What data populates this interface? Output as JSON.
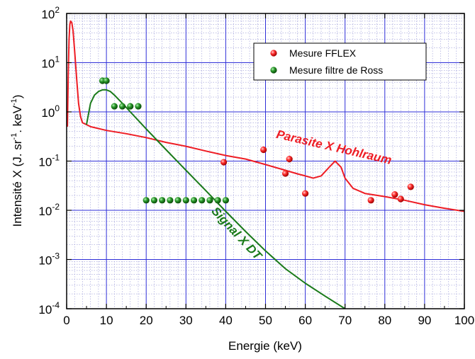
{
  "chart_data": {
    "type": "scatter",
    "xlabel": "Energie (keV)",
    "ylabel": {
      "main": "Intensité X (J. sr",
      "exp1": "-1",
      "mid": ". keV",
      "exp2": "-1",
      "end": ")"
    },
    "x_range": [
      0,
      100
    ],
    "y_range": [
      0.0001,
      100
    ],
    "y_scale": "log",
    "x_ticks": [
      "0",
      "10",
      "20",
      "30",
      "40",
      "50",
      "60",
      "70",
      "80",
      "90",
      "100"
    ],
    "y_ticks": [
      {
        "base": "10",
        "exp": "-4",
        "value": 0.0001
      },
      {
        "base": "10",
        "exp": "-3",
        "value": 0.001
      },
      {
        "base": "10",
        "exp": "-2",
        "value": 0.01
      },
      {
        "base": "10",
        "exp": "-1",
        "value": 0.1
      },
      {
        "base": "10",
        "exp": "0",
        "value": 1
      },
      {
        "base": "10",
        "exp": "1",
        "value": 10
      },
      {
        "base": "10",
        "exp": "2",
        "value": 100
      }
    ],
    "grid": true,
    "legend_position": "top-right",
    "colors": {
      "red": "#ee1c24",
      "green": "#1a7a1a",
      "grid": "#2f2fd8",
      "minor_grid": "#9a9ad8"
    },
    "series": [
      {
        "name": "Mesure FFLEX",
        "kind": "markers",
        "color": "#ee1c24",
        "points": [
          [
            39.5,
            0.095
          ],
          [
            49.5,
            0.17
          ],
          [
            55,
            0.056
          ],
          [
            56,
            0.11
          ],
          [
            60,
            0.022
          ],
          [
            76.5,
            0.016
          ],
          [
            82.5,
            0.021
          ],
          [
            84,
            0.017
          ],
          [
            86.5,
            0.03
          ]
        ]
      },
      {
        "name": "Mesure filtre de Ross",
        "kind": "markers",
        "color": "#1a7a1a",
        "points": [
          [
            9,
            4.3
          ],
          [
            10,
            4.3
          ],
          [
            12,
            1.3
          ],
          [
            14,
            1.3
          ],
          [
            16,
            1.3
          ],
          [
            18,
            1.3
          ],
          [
            20,
            0.016
          ],
          [
            22,
            0.016
          ],
          [
            24,
            0.016
          ],
          [
            26,
            0.016
          ],
          [
            28,
            0.016
          ],
          [
            30,
            0.016
          ],
          [
            32,
            0.016
          ],
          [
            34,
            0.016
          ],
          [
            36,
            0.016
          ],
          [
            38,
            0.016
          ],
          [
            40,
            0.016
          ]
        ]
      },
      {
        "kind": "line",
        "color": "#ee1c24",
        "points": [
          [
            0.2,
            0.5
          ],
          [
            0.4,
            5
          ],
          [
            0.6,
            30
          ],
          [
            0.8,
            60
          ],
          [
            1.0,
            70
          ],
          [
            1.3,
            65
          ],
          [
            1.6,
            45
          ],
          [
            2,
            18
          ],
          [
            2.5,
            5
          ],
          [
            3,
            1.5
          ],
          [
            3.5,
            0.8
          ],
          [
            4,
            0.6
          ],
          [
            5,
            0.55
          ],
          [
            6,
            0.5
          ],
          [
            10,
            0.42
          ],
          [
            15,
            0.36
          ],
          [
            20,
            0.3
          ],
          [
            25,
            0.24
          ],
          [
            30,
            0.2
          ],
          [
            35,
            0.16
          ],
          [
            40,
            0.13
          ],
          [
            45,
            0.11
          ],
          [
            50,
            0.085
          ],
          [
            55,
            0.065
          ],
          [
            58,
            0.055
          ],
          [
            60,
            0.05
          ],
          [
            62,
            0.045
          ],
          [
            64,
            0.05
          ],
          [
            66,
            0.075
          ],
          [
            67.5,
            0.1
          ],
          [
            69,
            0.075
          ],
          [
            70,
            0.045
          ],
          [
            72,
            0.028
          ],
          [
            75,
            0.022
          ],
          [
            80,
            0.019
          ],
          [
            85,
            0.016
          ],
          [
            90,
            0.013
          ],
          [
            95,
            0.011
          ],
          [
            100,
            0.0095
          ]
        ]
      },
      {
        "kind": "line",
        "color": "#1a7a1a",
        "points": [
          [
            5,
            0.55
          ],
          [
            6,
            1.5
          ],
          [
            7,
            2.2
          ],
          [
            8,
            2.6
          ],
          [
            9,
            2.8
          ],
          [
            10,
            2.8
          ],
          [
            11,
            2.6
          ],
          [
            12,
            2.2
          ],
          [
            14,
            1.5
          ],
          [
            16,
            1.0
          ],
          [
            20,
            0.45
          ],
          [
            25,
            0.17
          ],
          [
            30,
            0.065
          ],
          [
            35,
            0.025
          ],
          [
            40,
            0.0095
          ],
          [
            45,
            0.0037
          ],
          [
            50,
            0.0015
          ],
          [
            55,
            0.00065
          ],
          [
            60,
            0.00033
          ],
          [
            65,
            0.00018
          ],
          [
            70,
            0.0001
          ]
        ]
      }
    ],
    "annotations": [
      {
        "text": "Parasite X Hohlraum",
        "color": "#ee1c24",
        "x": 67,
        "y": 0.16,
        "rotate": 13
      },
      {
        "text": "Signal X DT",
        "color": "#1a7a1a",
        "x": 42,
        "y": 0.003,
        "rotate": 47
      }
    ]
  }
}
